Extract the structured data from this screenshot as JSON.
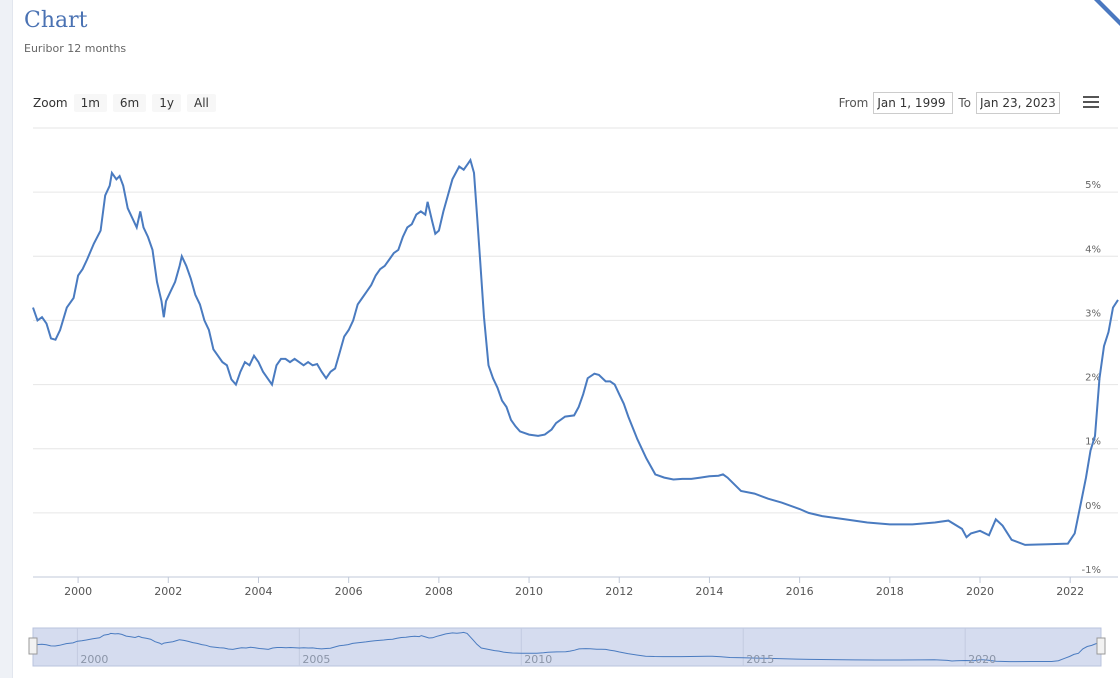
{
  "header": {
    "title": "Chart",
    "subtitle": "Euribor 12 months"
  },
  "toolbar": {
    "zoom_label": "Zoom",
    "zoom_buttons": [
      "1m",
      "6m",
      "1y",
      "All"
    ],
    "from_label": "From",
    "from_value": "Jan 1, 1999",
    "to_label": "To",
    "to_value": "Jan 23, 2023",
    "menu_icon": "hamburger-menu-icon"
  },
  "colors": {
    "line": "#4a7bc0",
    "navigator_fill": "#d5dcef",
    "title": "#4a72b3"
  },
  "chart_data": {
    "type": "line",
    "title": "",
    "xlabel": "",
    "ylabel": "",
    "x_ticks": [
      "2000",
      "2002",
      "2004",
      "2006",
      "2008",
      "2010",
      "2012",
      "2014",
      "2016",
      "2018",
      "2020",
      "2022"
    ],
    "y_ticks": [
      "-1%",
      "0%",
      "1%",
      "2%",
      "3%",
      "4%",
      "5%"
    ],
    "xlim": [
      1999.0,
      2023.06
    ],
    "ylim": [
      -1,
      6
    ],
    "grid": true,
    "navigator_ticks": [
      "2000",
      "2005",
      "2010",
      "2015",
      "2020"
    ],
    "series": [
      {
        "values": [
          [
            1999.0,
            3.2
          ],
          [
            1999.1,
            3.0
          ],
          [
            1999.2,
            3.05
          ],
          [
            1999.3,
            2.95
          ],
          [
            1999.4,
            2.72
          ],
          [
            1999.5,
            2.7
          ],
          [
            1999.6,
            2.85
          ],
          [
            1999.75,
            3.2
          ],
          [
            1999.9,
            3.35
          ],
          [
            2000.0,
            3.7
          ],
          [
            2000.1,
            3.8
          ],
          [
            2000.2,
            3.95
          ],
          [
            2000.35,
            4.2
          ],
          [
            2000.5,
            4.4
          ],
          [
            2000.6,
            4.95
          ],
          [
            2000.7,
            5.1
          ],
          [
            2000.75,
            5.3
          ],
          [
            2000.85,
            5.2
          ],
          [
            2000.92,
            5.25
          ],
          [
            2001.0,
            5.1
          ],
          [
            2001.1,
            4.75
          ],
          [
            2001.2,
            4.6
          ],
          [
            2001.3,
            4.45
          ],
          [
            2001.38,
            4.7
          ],
          [
            2001.45,
            4.45
          ],
          [
            2001.55,
            4.3
          ],
          [
            2001.65,
            4.1
          ],
          [
            2001.75,
            3.6
          ],
          [
            2001.85,
            3.3
          ],
          [
            2001.9,
            3.05
          ],
          [
            2001.95,
            3.3
          ],
          [
            2002.05,
            3.45
          ],
          [
            2002.15,
            3.6
          ],
          [
            2002.25,
            3.85
          ],
          [
            2002.3,
            4.0
          ],
          [
            2002.4,
            3.85
          ],
          [
            2002.5,
            3.65
          ],
          [
            2002.6,
            3.4
          ],
          [
            2002.7,
            3.25
          ],
          [
            2002.8,
            3.0
          ],
          [
            2002.9,
            2.85
          ],
          [
            2003.0,
            2.55
          ],
          [
            2003.1,
            2.45
          ],
          [
            2003.2,
            2.35
          ],
          [
            2003.3,
            2.3
          ],
          [
            2003.4,
            2.08
          ],
          [
            2003.5,
            2.0
          ],
          [
            2003.6,
            2.2
          ],
          [
            2003.7,
            2.35
          ],
          [
            2003.8,
            2.3
          ],
          [
            2003.9,
            2.45
          ],
          [
            2004.0,
            2.35
          ],
          [
            2004.1,
            2.2
          ],
          [
            2004.2,
            2.1
          ],
          [
            2004.3,
            2.0
          ],
          [
            2004.4,
            2.3
          ],
          [
            2004.5,
            2.4
          ],
          [
            2004.6,
            2.4
          ],
          [
            2004.7,
            2.35
          ],
          [
            2004.8,
            2.4
          ],
          [
            2004.9,
            2.35
          ],
          [
            2005.0,
            2.3
          ],
          [
            2005.1,
            2.35
          ],
          [
            2005.2,
            2.3
          ],
          [
            2005.3,
            2.32
          ],
          [
            2005.4,
            2.2
          ],
          [
            2005.5,
            2.1
          ],
          [
            2005.6,
            2.2
          ],
          [
            2005.7,
            2.25
          ],
          [
            2005.8,
            2.5
          ],
          [
            2005.9,
            2.75
          ],
          [
            2006.0,
            2.85
          ],
          [
            2006.1,
            3.0
          ],
          [
            2006.2,
            3.25
          ],
          [
            2006.3,
            3.35
          ],
          [
            2006.4,
            3.45
          ],
          [
            2006.5,
            3.55
          ],
          [
            2006.6,
            3.7
          ],
          [
            2006.7,
            3.8
          ],
          [
            2006.8,
            3.85
          ],
          [
            2006.9,
            3.95
          ],
          [
            2007.0,
            4.05
          ],
          [
            2007.1,
            4.1
          ],
          [
            2007.2,
            4.3
          ],
          [
            2007.3,
            4.45
          ],
          [
            2007.4,
            4.5
          ],
          [
            2007.5,
            4.65
          ],
          [
            2007.6,
            4.7
          ],
          [
            2007.7,
            4.65
          ],
          [
            2007.75,
            4.85
          ],
          [
            2007.85,
            4.55
          ],
          [
            2007.92,
            4.35
          ],
          [
            2008.0,
            4.4
          ],
          [
            2008.1,
            4.7
          ],
          [
            2008.2,
            4.95
          ],
          [
            2008.3,
            5.2
          ],
          [
            2008.45,
            5.4
          ],
          [
            2008.55,
            5.35
          ],
          [
            2008.65,
            5.45
          ],
          [
            2008.7,
            5.5
          ],
          [
            2008.78,
            5.3
          ],
          [
            2008.85,
            4.6
          ],
          [
            2008.92,
            3.9
          ],
          [
            2009.0,
            3.05
          ],
          [
            2009.1,
            2.3
          ],
          [
            2009.2,
            2.1
          ],
          [
            2009.3,
            1.95
          ],
          [
            2009.4,
            1.75
          ],
          [
            2009.5,
            1.65
          ],
          [
            2009.6,
            1.45
          ],
          [
            2009.7,
            1.35
          ],
          [
            2009.8,
            1.27
          ],
          [
            2010.0,
            1.22
          ],
          [
            2010.2,
            1.2
          ],
          [
            2010.35,
            1.22
          ],
          [
            2010.5,
            1.3
          ],
          [
            2010.6,
            1.4
          ],
          [
            2010.8,
            1.5
          ],
          [
            2011.0,
            1.52
          ],
          [
            2011.1,
            1.65
          ],
          [
            2011.2,
            1.85
          ],
          [
            2011.3,
            2.1
          ],
          [
            2011.45,
            2.17
          ],
          [
            2011.55,
            2.15
          ],
          [
            2011.7,
            2.05
          ],
          [
            2011.8,
            2.05
          ],
          [
            2011.9,
            2.0
          ],
          [
            2012.0,
            1.85
          ],
          [
            2012.1,
            1.7
          ],
          [
            2012.2,
            1.5
          ],
          [
            2012.4,
            1.15
          ],
          [
            2012.6,
            0.85
          ],
          [
            2012.8,
            0.6
          ],
          [
            2013.0,
            0.55
          ],
          [
            2013.2,
            0.52
          ],
          [
            2013.4,
            0.53
          ],
          [
            2013.6,
            0.53
          ],
          [
            2013.8,
            0.55
          ],
          [
            2014.0,
            0.57
          ],
          [
            2014.2,
            0.58
          ],
          [
            2014.3,
            0.6
          ],
          [
            2014.4,
            0.55
          ],
          [
            2014.5,
            0.48
          ],
          [
            2014.7,
            0.34
          ],
          [
            2015.0,
            0.3
          ],
          [
            2015.3,
            0.22
          ],
          [
            2015.6,
            0.16
          ],
          [
            2016.0,
            0.06
          ],
          [
            2016.2,
            0.0
          ],
          [
            2016.5,
            -0.05
          ],
          [
            2017.0,
            -0.1
          ],
          [
            2017.5,
            -0.15
          ],
          [
            2018.0,
            -0.18
          ],
          [
            2018.5,
            -0.18
          ],
          [
            2019.0,
            -0.15
          ],
          [
            2019.3,
            -0.12
          ],
          [
            2019.6,
            -0.25
          ],
          [
            2019.7,
            -0.38
          ],
          [
            2019.8,
            -0.32
          ],
          [
            2020.0,
            -0.28
          ],
          [
            2020.2,
            -0.35
          ],
          [
            2020.35,
            -0.1
          ],
          [
            2020.5,
            -0.2
          ],
          [
            2020.7,
            -0.42
          ],
          [
            2021.0,
            -0.5
          ],
          [
            2021.5,
            -0.49
          ],
          [
            2021.95,
            -0.48
          ],
          [
            2022.1,
            -0.32
          ],
          [
            2022.25,
            0.2
          ],
          [
            2022.35,
            0.55
          ],
          [
            2022.45,
            0.97
          ],
          [
            2022.55,
            1.2
          ],
          [
            2022.65,
            2.1
          ],
          [
            2022.75,
            2.6
          ],
          [
            2022.85,
            2.82
          ],
          [
            2022.95,
            3.2
          ],
          [
            2023.06,
            3.32
          ]
        ]
      }
    ]
  }
}
